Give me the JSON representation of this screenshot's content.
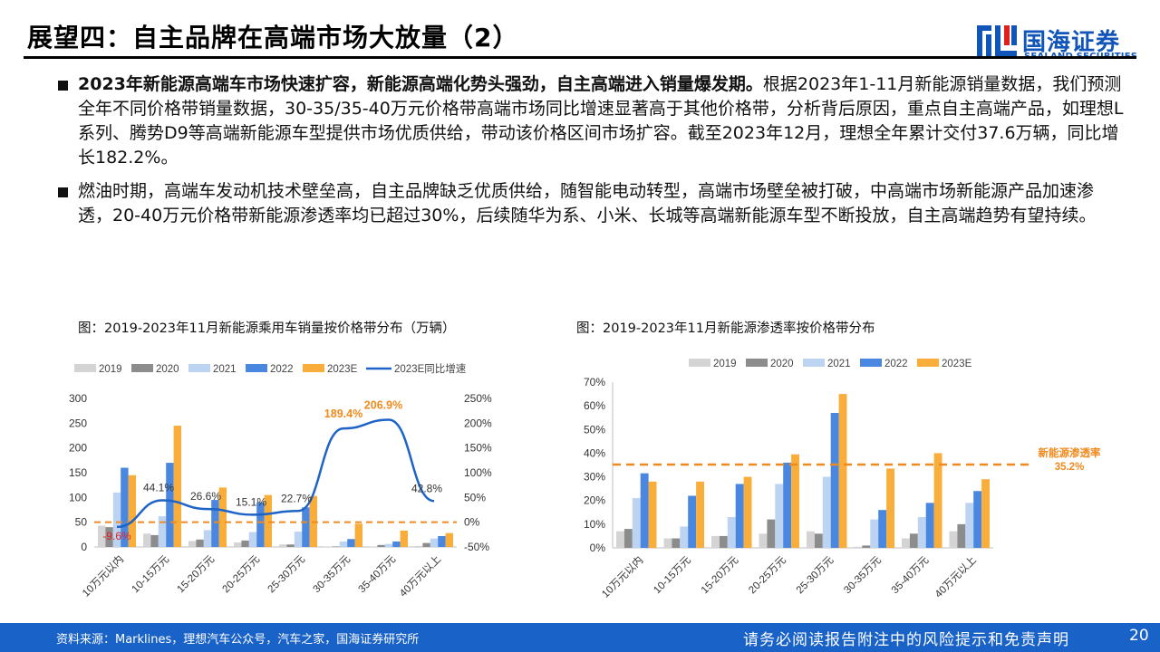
{
  "header": {
    "title": "展望四：自主品牌在高端市场大放量（2）",
    "logo_cn": "国海证券",
    "logo_en": "SEALAND SECURITIES"
  },
  "bullets": [
    {
      "bold": "2023年新能源高端车市场快速扩容，新能源高端化势头强劲，自主高端进入销量爆发期。",
      "text": "根据2023年1-11月新能源销量数据，我们预测全年不同价格带销量数据，30-35/35-40万元价格带高端市场同比增速显著高于其他价格带，分析背后原因，重点自主高端产品，如理想L系列、腾势D9等高端新能源车型提供市场优质供给，带动该价格区间市场扩容。截至2023年12月，理想全年累计交付37.6万辆，同比增长182.2%。"
    },
    {
      "bold": "",
      "text": "燃油时期，高端车发动机技术壁垒高，自主品牌缺乏优质供给，随智能电动转型，高端市场壁垒被打破，中高端市场新能源产品加速渗透，20-40万元价格带新能源渗透率均已超过30%，后续随华为系、小米、长城等高端新能源车型不断投放，自主高端趋势有望持续。"
    }
  ],
  "colors": {
    "s2019": "#d4d4d4",
    "s2020": "#8c8c8c",
    "s2021": "#bcd3f2",
    "s2022": "#4a87e0",
    "s2023E": "#f9ae3c",
    "growth_line": "#1e63c8",
    "ref_line": "#f08a1e",
    "pos_label": "#f08a1e",
    "neg_label": "#e0201b",
    "brand": "#1255b8",
    "footer_bg": "#1862c8"
  },
  "chart_data": [
    {
      "type": "bar",
      "title": "图：2019-2023年11月新能源乘用车销量按价格带分布（万辆）",
      "categories": [
        "10万元以内",
        "10-15万元",
        "15-20万元",
        "20-25万元",
        "25-30万元",
        "30-35万元",
        "35-40万元",
        "40万元以上"
      ],
      "series": [
        {
          "name": "2019",
          "values": [
            43,
            27,
            12,
            9,
            5,
            1,
            1,
            2
          ]
        },
        {
          "name": "2020",
          "values": [
            40,
            24,
            15,
            13,
            5,
            1,
            4,
            8
          ]
        },
        {
          "name": "2021",
          "values": [
            110,
            62,
            34,
            30,
            31,
            11,
            6,
            17
          ]
        },
        {
          "name": "2022",
          "values": [
            160,
            170,
            95,
            90,
            80,
            16,
            11,
            22
          ]
        },
        {
          "name": "2023E",
          "values": [
            145,
            245,
            120,
            105,
            103,
            47,
            33,
            28
          ]
        }
      ],
      "line": {
        "name": "2023E同比增速",
        "values": [
          -9.6,
          44.1,
          26.6,
          15.1,
          22.7,
          189.4,
          206.9,
          42.8
        ]
      },
      "line_labels": [
        "-9.6%",
        "44.1%",
        "26.6%",
        "15.1%",
        "22.7%",
        "189.4%",
        "206.9%",
        "42.8%"
      ],
      "ylim": [
        0,
        300
      ],
      "y_ticks": [
        "0",
        "50",
        "100",
        "150",
        "200",
        "250",
        "300"
      ],
      "y2lim": [
        -50,
        250
      ],
      "y2_ticks": [
        "-50%",
        "0%",
        "50%",
        "100%",
        "150%",
        "200%",
        "250%"
      ],
      "ref_line_value": 0,
      "legend": "top",
      "grid": false
    },
    {
      "type": "bar",
      "title": "图：2019-2023年11月新能源渗透率按价格带分布",
      "categories": [
        "10万元以内",
        "10-15万元",
        "15-20万元",
        "20-25万元",
        "25-30万元",
        "30-35万元",
        "35-40万元",
        "40万元以上"
      ],
      "series": [
        {
          "name": "2019",
          "values": [
            7,
            4,
            5,
            6,
            7,
            0.5,
            4,
            7
          ]
        },
        {
          "name": "2020",
          "values": [
            8,
            4,
            5,
            12,
            6,
            1,
            6,
            10
          ]
        },
        {
          "name": "2021",
          "values": [
            21,
            9,
            13,
            27,
            30,
            12,
            13,
            19
          ]
        },
        {
          "name": "2022",
          "values": [
            31.5,
            22,
            27,
            36,
            57,
            16,
            19,
            24
          ]
        },
        {
          "name": "2023E",
          "values": [
            28,
            28,
            30,
            39.5,
            65,
            33.5,
            40,
            29
          ]
        }
      ],
      "ylim": [
        0,
        70
      ],
      "y_ticks": [
        "0%",
        "10%",
        "20%",
        "30%",
        "40%",
        "50%",
        "60%",
        "70%"
      ],
      "ref_line_value": 35.2,
      "ref_label": "新能源渗透率",
      "ref_value_label": "35.2%",
      "legend": "top",
      "grid": false
    }
  ],
  "footer": {
    "source": "资料来源：Marklines，理想汽车公众号，汽车之家，国海证券研究所",
    "disclaimer": "请务必阅读报告附注中的风险提示和免责声明",
    "page": "20"
  }
}
